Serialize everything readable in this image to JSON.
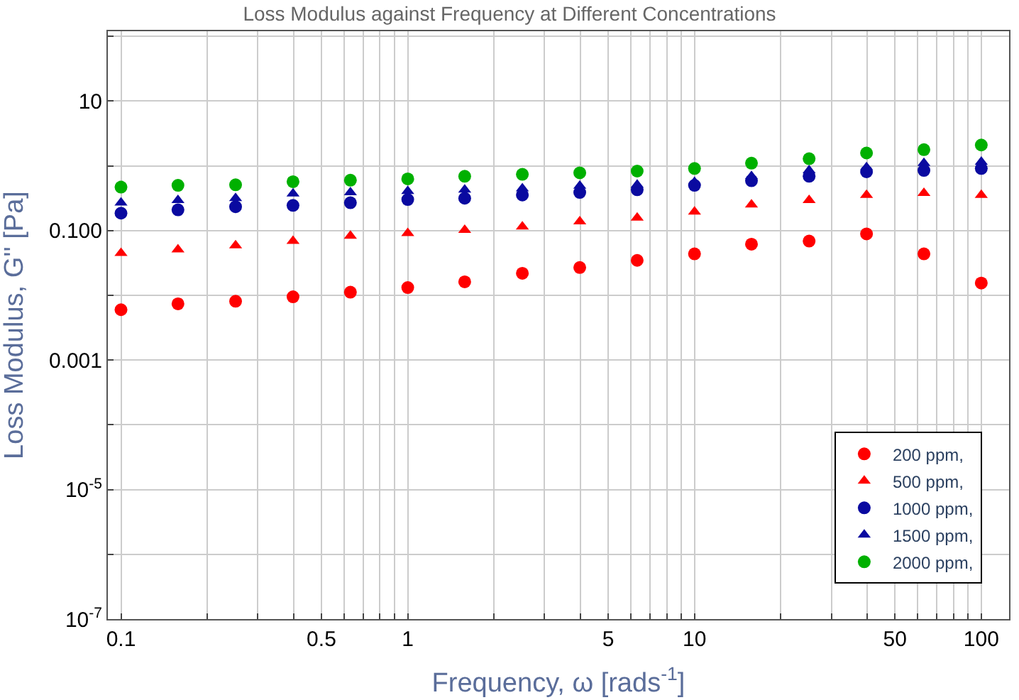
{
  "chart_data": {
    "type": "scatter",
    "title": "Loss Modulus against Frequency at Different Concentrations",
    "xlabel": "Frequency, ω [rads$^{-1}$]",
    "ylabel": "Loss Modulus, G'' [Pa]",
    "log": "xy",
    "grid": true,
    "legend": "bottom right",
    "x": [
      0.1,
      0.158,
      0.251,
      0.398,
      0.631,
      1,
      1.58,
      2.51,
      3.98,
      6.31,
      10,
      15.8,
      25.1,
      39.8,
      63.1,
      100
    ],
    "xlim": [
      0.09,
      125
    ],
    "ylim": [
      1e-07,
      120
    ],
    "xticks": [
      0.1,
      {
        "value": 0.2,
        "label": null
      },
      {
        "value": 0.3,
        "label": null
      },
      {
        "value": 0.4,
        "label": null
      },
      0.5,
      {
        "value": 0.6,
        "label": null
      },
      {
        "value": 0.7,
        "label": null
      },
      {
        "value": 0.8,
        "label": null
      },
      {
        "value": 0.9,
        "label": null
      },
      1,
      {
        "value": 2,
        "label": null
      },
      {
        "value": 3,
        "label": null
      },
      {
        "value": 4,
        "label": null
      },
      5,
      {
        "value": 6,
        "label": null
      },
      {
        "value": 7,
        "label": null
      },
      {
        "value": 8,
        "label": null
      },
      {
        "value": 9,
        "label": null
      },
      10,
      {
        "value": 20,
        "label": null
      },
      {
        "value": 30,
        "label": null
      },
      {
        "value": 40,
        "label": null
      },
      50,
      {
        "value": 60,
        "label": null
      },
      {
        "value": 70,
        "label": null
      },
      {
        "value": 80,
        "label": null
      },
      {
        "value": 90,
        "label": null
      },
      100
    ],
    "yticks": [
      {
        "value": 1e-07,
        "label": "10$^{-7}$"
      },
      {
        "value": 1e-06,
        "label": null
      },
      {
        "value": 1e-05,
        "label": "10$^{-5}$"
      },
      {
        "value": 0.0001,
        "label": null
      },
      {
        "value": 0.001,
        "label": "0.001"
      },
      {
        "value": 0.01,
        "label": null
      },
      {
        "value": 0.1,
        "label": "0.100"
      },
      {
        "value": 1,
        "label": null
      },
      10,
      {
        "value": 100,
        "label": null
      }
    ],
    "series": [
      {
        "name": "200 ppm,",
        "color": "#ff0000",
        "marker": "circle",
        "values": [
          0.006,
          0.0074,
          0.0081,
          0.0095,
          0.0112,
          0.0132,
          0.0162,
          0.0219,
          0.0269,
          0.0347,
          0.0437,
          0.0617,
          0.069,
          0.089,
          0.0437,
          0.0155
        ]
      },
      {
        "name": "500 ppm,",
        "color": "#ff0000",
        "marker": "triangle",
        "values": [
          0.045,
          0.051,
          0.059,
          0.069,
          0.083,
          0.091,
          0.102,
          0.115,
          0.138,
          0.158,
          0.195,
          0.251,
          0.295,
          0.355,
          0.38,
          0.355
        ]
      },
      {
        "name": "1000 ppm,",
        "color": "#0a0aa0",
        "marker": "circle",
        "values": [
          0.186,
          0.209,
          0.234,
          0.245,
          0.269,
          0.302,
          0.316,
          0.355,
          0.389,
          0.427,
          0.5,
          0.59,
          0.69,
          0.81,
          0.85,
          0.91
        ]
      },
      {
        "name": "1500 ppm,",
        "color": "#0a0aa0",
        "marker": "triangle",
        "values": [
          0.269,
          0.295,
          0.316,
          0.372,
          0.389,
          0.407,
          0.427,
          0.447,
          0.49,
          0.51,
          0.56,
          0.69,
          0.85,
          0.95,
          1.1,
          1.15
        ]
      },
      {
        "name": "2000 ppm,",
        "color": "#00b000",
        "marker": "circle",
        "values": [
          0.47,
          0.5,
          0.51,
          0.57,
          0.6,
          0.63,
          0.69,
          0.74,
          0.78,
          0.83,
          0.91,
          1.1,
          1.29,
          1.58,
          1.78,
          2.1
        ]
      }
    ]
  }
}
